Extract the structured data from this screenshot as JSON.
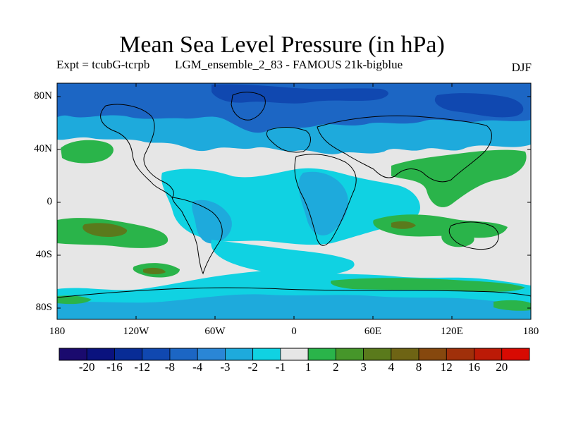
{
  "title": "Mean Sea Level Pressure (in hPa)",
  "subtitle_left": "Expt = tcubG-tcrpb",
  "subtitle_center": "LGM_ensemble_2_83 - FAMOUS 21k-bigblue",
  "season": "DJF",
  "lat_ticks": [
    "80N",
    "40N",
    "0",
    "40S",
    "80S"
  ],
  "lon_ticks": [
    "180",
    "120W",
    "60W",
    "0",
    "60E",
    "120E",
    "180"
  ],
  "colorbar": {
    "colors": [
      "#1a0a6e",
      "#0a127e",
      "#082c96",
      "#1048b0",
      "#1c66c4",
      "#2a86d6",
      "#1eaadc",
      "#10d2e2",
      "#e6e6e6",
      "#2ab44a",
      "#46962a",
      "#5a7a1c",
      "#6e6414",
      "#86480e",
      "#a0300a",
      "#bc1a06",
      "#d80a02"
    ],
    "labels": [
      "-20",
      "-16",
      "-12",
      "-8",
      "-4",
      "-3",
      "-2",
      "-1",
      "1",
      "2",
      "3",
      "4",
      "8",
      "12",
      "16",
      "20"
    ]
  },
  "legend": {
    "background": "#e6e6e6",
    "weak_negative": "#10d2e2",
    "negative": "#1eaadc",
    "mid_negative": "#1c66c4",
    "strong_negative": "#1048b0",
    "weak_positive": "#2ab44a",
    "positive": "#5a7a1c"
  }
}
